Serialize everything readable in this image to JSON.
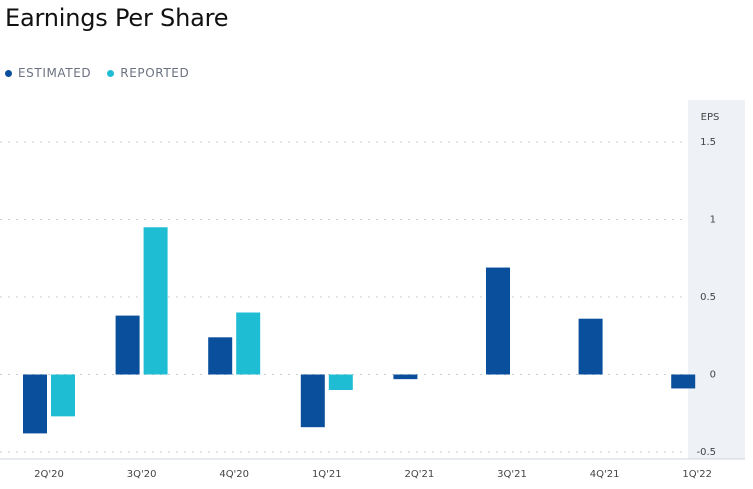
{
  "title": "Earnings Per Share",
  "legend": [
    {
      "label": "ESTIMATED",
      "color": "#0a4f9c"
    },
    {
      "label": "REPORTED",
      "color": "#1fbdd3"
    }
  ],
  "chart_data": {
    "type": "bar",
    "title": "Earnings Per Share",
    "ylabel": "EPS",
    "ylim": [
      -0.5,
      1.5
    ],
    "yticks": [
      "1.5",
      "1",
      "0.5",
      "0",
      "-0.5"
    ],
    "y_axis_position": "right",
    "grid": true,
    "legend_position": "top-left",
    "categories": [
      "2Q'20",
      "3Q'20",
      "4Q'20",
      "1Q'21",
      "2Q'21",
      "3Q'21",
      "4Q'21",
      "1Q'22"
    ],
    "series": [
      {
        "name": "ESTIMATED",
        "color": "#0a4f9c",
        "values": [
          -0.38,
          0.38,
          0.24,
          -0.34,
          -0.03,
          0.69,
          0.36,
          -0.09
        ]
      },
      {
        "name": "REPORTED",
        "color": "#1fbdd3",
        "values": [
          -0.27,
          0.95,
          0.4,
          -0.1,
          null,
          null,
          null,
          null
        ]
      }
    ]
  }
}
